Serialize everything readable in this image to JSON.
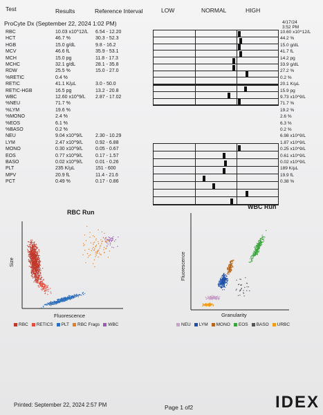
{
  "header": {
    "col_test": "Test",
    "col_results": "Results",
    "col_reference": "Reference Interval",
    "col_low": "LOW",
    "col_normal": "NORMAL",
    "col_high": "HIGH",
    "instrument_title": "ProCyte Dx (September 22, 2024 1:02 PM)",
    "date": "4/17/24",
    "time": "3:52 PM"
  },
  "tests": [
    {
      "name": "RBC",
      "result": "10.03 x10^12/L",
      "ref": "6.54 - 12.20",
      "right": "10.60 x10^12/L",
      "marker": 0.68
    },
    {
      "name": "HCT",
      "result": "46.7 %",
      "ref": "30.3 - 52.3",
      "right": "44.2 %",
      "marker": 0.69
    },
    {
      "name": "HGB",
      "result": "15.0 g/dL",
      "ref": "9.8 - 16.2",
      "right": "15.0 g/dL",
      "marker": 0.68
    },
    {
      "name": "MCV",
      "result": "46.6 fL",
      "ref": "35.9 - 53.1",
      "right": "41.7 fL",
      "marker": 0.69
    },
    {
      "name": "MCH",
      "result": "15.0 pg",
      "ref": "11.8 - 17.3",
      "right": "14.2 pg",
      "marker": 0.64
    },
    {
      "name": "MCHC",
      "result": "32.1 g/dL",
      "ref": "28.1 - 35.8",
      "right": "33.9 g/dL",
      "marker": 0.64
    },
    {
      "name": "RDW",
      "result": "25.5 %",
      "ref": "15.0 - 27.0",
      "right": "27.2 %",
      "marker": 0.74
    },
    {
      "name": "%RETIC",
      "result": "0.4 %",
      "ref": "",
      "right": "0.2 %",
      "marker": null
    },
    {
      "name": "RETIC",
      "result": "41.1 K/µL",
      "ref": "3.0 - 50.0",
      "right": "20.1 K/µL",
      "marker": 0.73
    },
    {
      "name": "RETIC-HGB",
      "result": "16.5 pg",
      "ref": "13.2 - 20.8",
      "right": "15.9 pg",
      "marker": 0.6
    },
    {
      "name": "WBC",
      "result": "12.60 x10^9/L",
      "ref": "2.87 - 17.02",
      "right": "9.73 x10^9/L",
      "marker": 0.68
    },
    {
      "name": "%NEU",
      "result": "71.7 %",
      "ref": "",
      "right": "71.7 %",
      "marker": null
    },
    {
      "name": "%LYM",
      "result": "19.6 %",
      "ref": "",
      "right": "19.2 %",
      "marker": null
    },
    {
      "name": "%MONO",
      "result": "2.4 %",
      "ref": "",
      "right": "2.6 %",
      "marker": null
    },
    {
      "name": "%EOS",
      "result": "6.1 %",
      "ref": "",
      "right": "6.3 %",
      "marker": null
    },
    {
      "name": "%BASO",
      "result": "0.2 %",
      "ref": "",
      "right": "0.2 %",
      "marker": null
    },
    {
      "name": "NEU",
      "result": "9.04 x10^9/L",
      "ref": "2.30 - 10.29",
      "right": "6.98 x10^9/L",
      "marker": 0.68
    },
    {
      "name": "LYM",
      "result": "2.47 x10^9/L",
      "ref": "0.92 - 6.88",
      "right": "1.87 x10^9/L",
      "marker": 0.56
    },
    {
      "name": "MONO",
      "result": "0.30 x10^9/L",
      "ref": "0.05 - 0.67",
      "right": "0.25 x10^9/L",
      "marker": 0.57
    },
    {
      "name": "EOS",
      "result": "0.77 x10^9/L",
      "ref": "0.17 - 1.57",
      "right": "0.61 x10^9/L",
      "marker": 0.56
    },
    {
      "name": "BASO",
      "result": "0.02 x10^9/L",
      "ref": "0.01 - 0.26",
      "right": "0.02 x10^9/L",
      "marker": 0.4
    },
    {
      "name": "PLT",
      "result": "235 K/µL",
      "ref": "151 - 600",
      "right": "189 K/µL",
      "marker": 0.48
    },
    {
      "name": "MPV",
      "result": "20.9 fL",
      "ref": "11.4 - 21.6",
      "right": "19.9 fL",
      "marker": 0.74
    },
    {
      "name": "PCT",
      "result": "0.49 %",
      "ref": "0.17 - 0.86",
      "right": "0.38 %",
      "marker": 0.62
    }
  ],
  "rbc_plot": {
    "title": "RBC Run",
    "xlabel": "Fluorescence",
    "ylabel": "Size",
    "legend": [
      {
        "label": "RBC",
        "color": "#c0392b"
      },
      {
        "label": "RETICS",
        "color": "#e74c3c"
      },
      {
        "label": "PLT",
        "color": "#2c6fbf"
      },
      {
        "label": "RBC Frags",
        "color": "#e67e22"
      },
      {
        "label": "WBC",
        "color": "#9b59b6"
      }
    ]
  },
  "wbc_plot": {
    "title": "WBC Run",
    "xlabel": "Granularity",
    "ylabel": "Fluorescence",
    "legend": [
      {
        "label": "NEU",
        "color": "#c8a2c8"
      },
      {
        "label": "LYM",
        "color": "#1f4fa8"
      },
      {
        "label": "MONO",
        "color": "#b5651d"
      },
      {
        "label": "EOS",
        "color": "#3aa53a"
      },
      {
        "label": "BASO",
        "color": "#555555"
      },
      {
        "label": "URBC",
        "color": "#f39c12"
      }
    ]
  },
  "footer": {
    "printed": "Printed: September 22, 2024 2:57 PM",
    "page": "Page 1 of2",
    "logo": "IDEX"
  }
}
